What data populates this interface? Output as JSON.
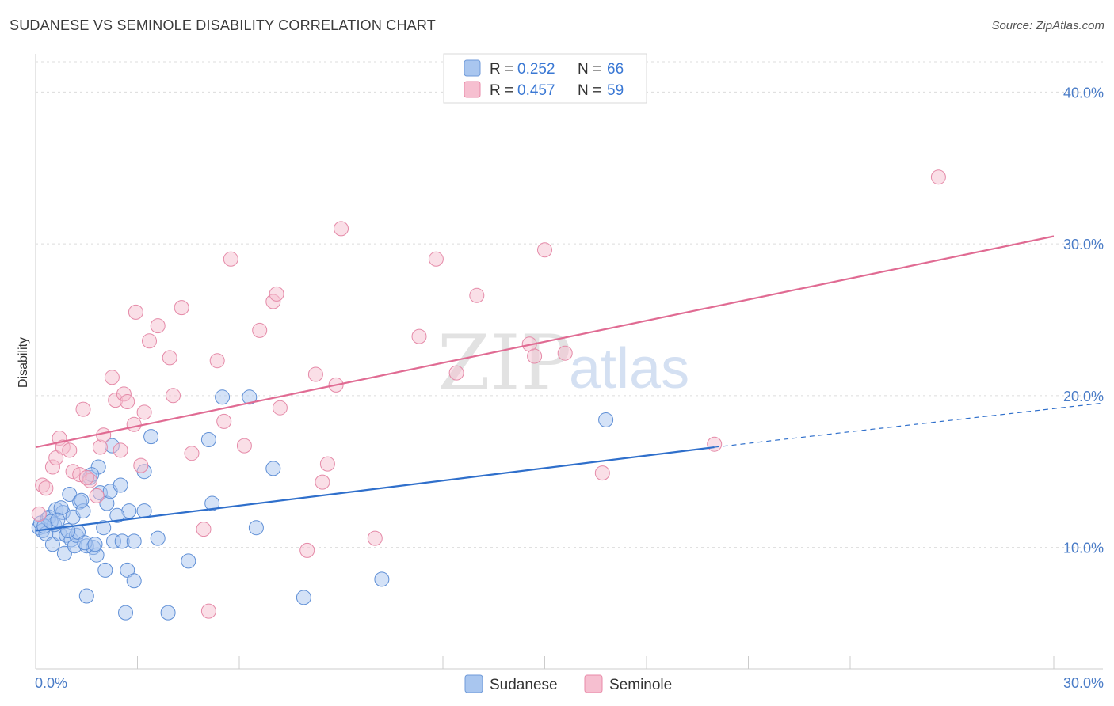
{
  "header": {
    "title": "SUDANESE VS SEMINOLE DISABILITY CORRELATION CHART",
    "source": "Source: ZipAtlas.com"
  },
  "watermark": {
    "zip": "ZIP",
    "atlas": "atlas"
  },
  "legend": {
    "rows": [
      {
        "r_label": "R =",
        "r_value": "0.252",
        "n_label": "N =",
        "n_value": "66",
        "color": "#a9c6ef",
        "stroke": "#6f9ad8"
      },
      {
        "r_label": "R =",
        "r_value": "0.457",
        "n_label": "N =",
        "n_value": "59",
        "color": "#f6bfd0",
        "stroke": "#e88aa8"
      }
    ]
  },
  "bottom_legend": [
    "Sudanese",
    "Seminole"
  ],
  "chart_data": {
    "type": "scatter",
    "title": "SUDANESE VS SEMINOLE DISABILITY CORRELATION CHART",
    "xlabel": "",
    "ylabel": "Disability",
    "xlim": [
      0,
      30
    ],
    "ylim": [
      2.0,
      42.0
    ],
    "x_tick_labels": [
      "0.0%",
      "30.0%"
    ],
    "y_ticks": [
      10,
      20,
      30,
      40
    ],
    "y_tick_labels": [
      "10.0%",
      "20.0%",
      "30.0%",
      "40.0%"
    ],
    "grid": "horizontal dashed",
    "legend_position": "top-center",
    "series": [
      {
        "name": "Sudanese",
        "color": "#a9c6ef",
        "stroke": "#5f8fd6",
        "line_color": "#2f6fcb",
        "trend": {
          "x0": 0,
          "y0": 11.1,
          "x1": 20,
          "y1": 16.6,
          "x_dash_end": 30,
          "y_dash_end": 19.5
        },
        "points": [
          [
            0.1,
            11.3
          ],
          [
            0.15,
            11.6
          ],
          [
            0.2,
            11.1
          ],
          [
            0.3,
            10.9
          ],
          [
            0.35,
            11.9
          ],
          [
            0.4,
            12.0
          ],
          [
            0.5,
            10.2
          ],
          [
            0.6,
            12.5
          ],
          [
            0.7,
            10.9
          ],
          [
            0.8,
            12.3
          ],
          [
            0.85,
            9.6
          ],
          [
            0.9,
            10.8
          ],
          [
            1.0,
            13.5
          ],
          [
            1.05,
            10.5
          ],
          [
            1.1,
            12.0
          ],
          [
            1.15,
            10.1
          ],
          [
            1.2,
            10.8
          ],
          [
            1.3,
            13.0
          ],
          [
            1.4,
            12.4
          ],
          [
            1.5,
            10.1
          ],
          [
            1.5,
            6.8
          ],
          [
            1.6,
            14.6
          ],
          [
            1.7,
            10.0
          ],
          [
            1.8,
            9.5
          ],
          [
            1.85,
            15.3
          ],
          [
            1.9,
            13.6
          ],
          [
            2.0,
            11.3
          ],
          [
            2.05,
            8.5
          ],
          [
            2.1,
            12.9
          ],
          [
            2.2,
            13.7
          ],
          [
            2.25,
            16.7
          ],
          [
            2.3,
            10.4
          ],
          [
            2.5,
            14.1
          ],
          [
            2.55,
            10.4
          ],
          [
            2.65,
            5.7
          ],
          [
            2.7,
            8.5
          ],
          [
            2.75,
            12.4
          ],
          [
            2.9,
            7.8
          ],
          [
            2.9,
            10.4
          ],
          [
            3.2,
            12.4
          ],
          [
            3.2,
            15.0
          ],
          [
            3.4,
            17.3
          ],
          [
            3.6,
            10.6
          ],
          [
            3.9,
            5.7
          ],
          [
            4.5,
            9.1
          ],
          [
            5.1,
            17.1
          ],
          [
            5.2,
            12.9
          ],
          [
            5.5,
            19.9
          ],
          [
            6.3,
            19.9
          ],
          [
            6.5,
            11.3
          ],
          [
            7.0,
            15.2
          ],
          [
            7.9,
            6.7
          ],
          [
            10.2,
            7.9
          ],
          [
            16.8,
            18.4
          ],
          [
            0.55,
            11.5
          ],
          [
            0.25,
            11.4
          ],
          [
            0.75,
            12.6
          ],
          [
            1.25,
            11.0
          ],
          [
            1.45,
            10.3
          ],
          [
            1.65,
            14.8
          ],
          [
            0.45,
            11.7
          ],
          [
            0.95,
            11.1
          ],
          [
            1.75,
            10.2
          ],
          [
            2.4,
            12.1
          ],
          [
            0.65,
            11.8
          ],
          [
            1.35,
            13.1
          ]
        ]
      },
      {
        "name": "Seminole",
        "color": "#f6bfd0",
        "stroke": "#e58aa8",
        "line_color": "#e06a92",
        "trend": {
          "x0": 0,
          "y0": 16.6,
          "x1": 30,
          "y1": 30.5
        },
        "points": [
          [
            0.1,
            12.2
          ],
          [
            0.2,
            14.1
          ],
          [
            0.3,
            13.9
          ],
          [
            0.5,
            15.3
          ],
          [
            0.6,
            15.9
          ],
          [
            0.7,
            17.2
          ],
          [
            0.8,
            16.6
          ],
          [
            1.0,
            16.4
          ],
          [
            1.1,
            15.0
          ],
          [
            1.3,
            14.8
          ],
          [
            1.4,
            19.1
          ],
          [
            1.6,
            14.4
          ],
          [
            1.8,
            13.4
          ],
          [
            1.9,
            16.6
          ],
          [
            2.0,
            17.4
          ],
          [
            2.25,
            21.2
          ],
          [
            2.35,
            19.7
          ],
          [
            2.5,
            16.4
          ],
          [
            2.6,
            20.1
          ],
          [
            2.7,
            19.6
          ],
          [
            2.9,
            18.1
          ],
          [
            2.95,
            25.5
          ],
          [
            3.1,
            15.4
          ],
          [
            3.2,
            18.9
          ],
          [
            3.35,
            23.6
          ],
          [
            3.6,
            24.6
          ],
          [
            3.95,
            22.5
          ],
          [
            4.05,
            20.0
          ],
          [
            4.3,
            25.8
          ],
          [
            4.6,
            16.2
          ],
          [
            4.95,
            11.2
          ],
          [
            5.1,
            5.8
          ],
          [
            5.35,
            22.3
          ],
          [
            5.55,
            18.3
          ],
          [
            5.75,
            29.0
          ],
          [
            6.15,
            16.7
          ],
          [
            6.6,
            24.3
          ],
          [
            7.0,
            26.2
          ],
          [
            7.1,
            26.7
          ],
          [
            7.2,
            19.2
          ],
          [
            8.0,
            9.8
          ],
          [
            8.25,
            21.4
          ],
          [
            8.45,
            14.3
          ],
          [
            8.6,
            15.5
          ],
          [
            8.85,
            20.7
          ],
          [
            9.0,
            31.0
          ],
          [
            10.0,
            10.6
          ],
          [
            11.3,
            23.9
          ],
          [
            11.8,
            29.0
          ],
          [
            12.4,
            21.5
          ],
          [
            13.0,
            26.6
          ],
          [
            14.55,
            23.4
          ],
          [
            14.7,
            22.6
          ],
          [
            15.0,
            29.6
          ],
          [
            15.6,
            22.8
          ],
          [
            16.7,
            14.9
          ],
          [
            20.0,
            16.8
          ],
          [
            26.6,
            34.4
          ],
          [
            1.5,
            14.6
          ]
        ]
      }
    ]
  }
}
